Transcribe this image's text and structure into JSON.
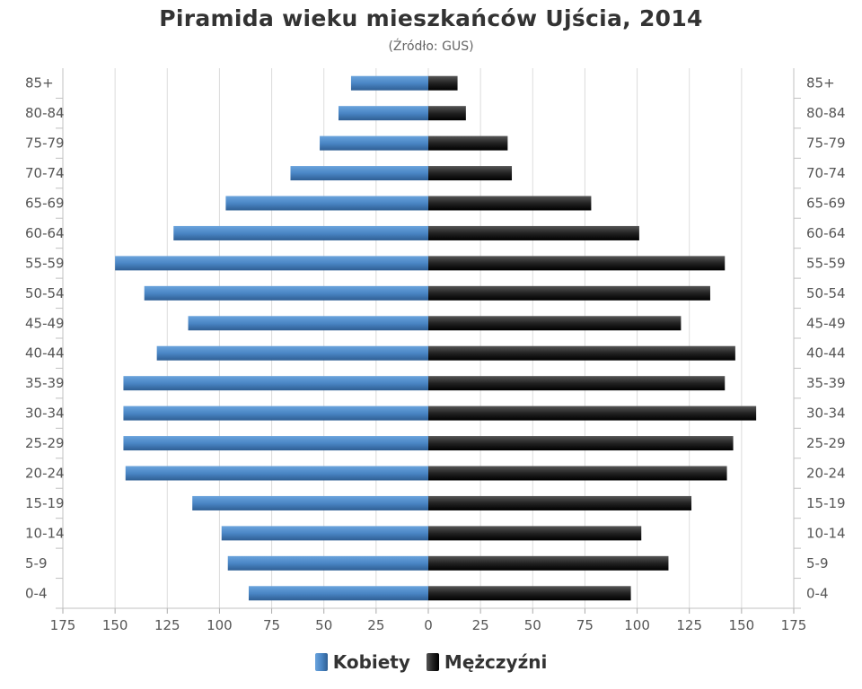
{
  "title": "Piramida wieku mieszkańców Ujścia, 2014",
  "subtitle": "(Źródło: GUS)",
  "colors": {
    "women": "#4a86c5",
    "women_dark": "#2f5f94",
    "men": "#222222",
    "men_dark": "#000000",
    "grid": "#dcdcdc",
    "axis_text": "#555555"
  },
  "chart_data": {
    "type": "bar",
    "orientation": "horizontal-butterfly",
    "title": "Piramida wieku mieszkańców Ujścia, 2014",
    "subtitle": "(Źródło: GUS)",
    "categories": [
      "85+",
      "80-84",
      "75-79",
      "70-74",
      "65-69",
      "60-64",
      "55-59",
      "50-54",
      "45-49",
      "40-44",
      "35-39",
      "30-34",
      "25-29",
      "20-24",
      "15-19",
      "10-14",
      "5-9",
      "0-4"
    ],
    "series": [
      {
        "name": "Kobiety",
        "side": "left",
        "values": [
          37,
          43,
          52,
          66,
          97,
          122,
          150,
          136,
          115,
          130,
          146,
          146,
          146,
          145,
          113,
          99,
          96,
          86
        ]
      },
      {
        "name": "Mężczyźni",
        "side": "right",
        "values": [
          14,
          18,
          38,
          40,
          78,
          101,
          142,
          135,
          121,
          147,
          142,
          157,
          146,
          143,
          126,
          102,
          115,
          97
        ]
      }
    ],
    "x_ticks": [
      "175",
      "150",
      "125",
      "100",
      "75",
      "50",
      "25",
      "0",
      "25",
      "50",
      "75",
      "100",
      "125",
      "150",
      "175"
    ],
    "xlim": [
      -175,
      175
    ],
    "grid": true,
    "legend_position": "bottom-center"
  }
}
